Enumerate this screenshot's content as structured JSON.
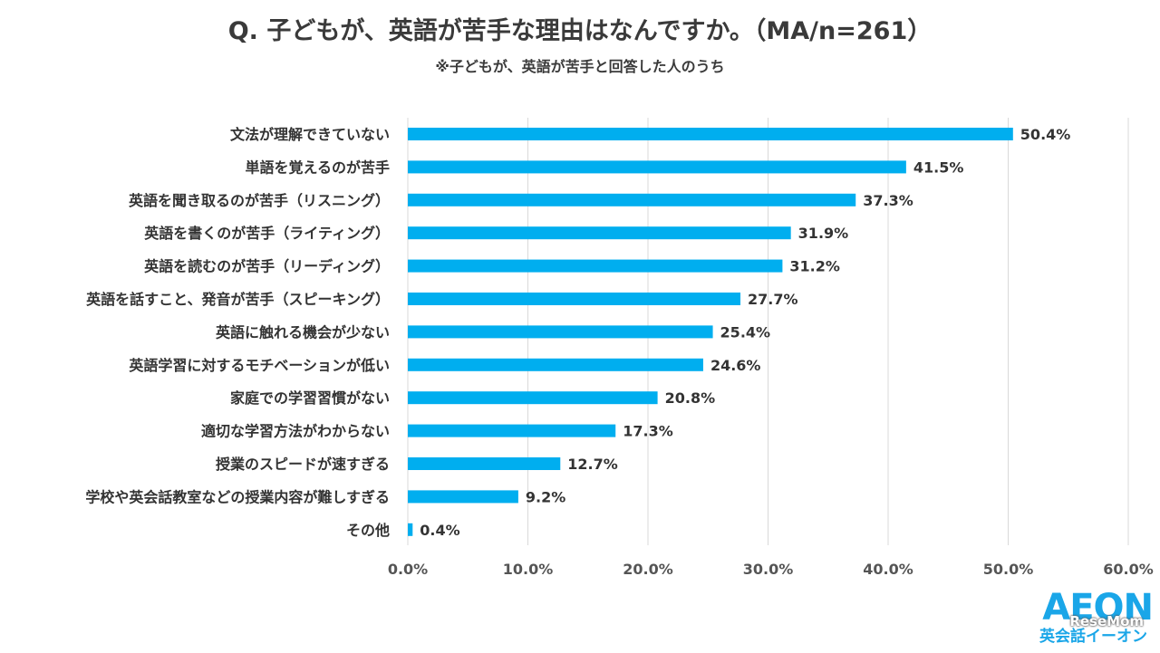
{
  "chart_data": {
    "type": "bar",
    "orientation": "horizontal",
    "title": "Q. 子どもが、英語が苦手な理由はなんですか。（MA/n=261）",
    "subtitle": "※子どもが、英語が苦手と回答した人のうち",
    "categories": [
      "文法が理解できていない",
      "単語を覚えるのが苦手",
      "英語を聞き取るのが苦手（リスニング）",
      "英語を書くのが苦手（ライティング）",
      "英語を読むのが苦手（リーディング）",
      "英語を話すこと、発音が苦手（スピーキング）",
      "英語に触れる機会が少ない",
      "英語学習に対するモチベーションが低い",
      "家庭での学習習慣がない",
      "適切な学習方法がわからない",
      "授業のスピードが速すぎる",
      "学校や英会話教室などの授業内容が難しすぎる",
      "その他"
    ],
    "values": [
      50.4,
      41.5,
      37.3,
      31.9,
      31.2,
      27.7,
      25.4,
      24.6,
      20.8,
      17.3,
      12.7,
      9.2,
      0.4
    ],
    "data_labels": [
      "50.4%",
      "41.5%",
      "37.3%",
      "31.9%",
      "31.2%",
      "27.7%",
      "25.4%",
      "24.6%",
      "20.8%",
      "17.3%",
      "12.7%",
      "9.2%",
      "0.4%"
    ],
    "xticks": [
      "0.0%",
      "10.0%",
      "20.0%",
      "30.0%",
      "40.0%",
      "50.0%",
      "60.0%"
    ],
    "xlim": [
      0,
      60
    ],
    "grid": "vertical",
    "legend": "none",
    "bar_color": "#00aeef",
    "grid_color": "#d9d9d9"
  },
  "logo": {
    "brand": "AEON",
    "brand_sub": "英会話イーオン",
    "watermark": "ReseMom",
    "color": "#1aa6e8"
  }
}
